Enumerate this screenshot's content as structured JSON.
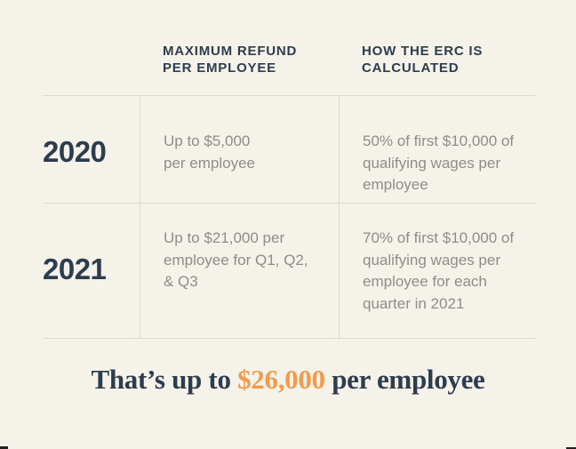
{
  "colors": {
    "background": "#f5f2e9",
    "navy": "#2e3d4e",
    "gray_text": "#8e8d8b",
    "orange_highlight": "#f49a4b",
    "grid_line": "#dcd9d1"
  },
  "chart_data": {
    "type": "table",
    "title": "ERC refund by year",
    "columns": [
      "",
      "MAXIMUM REFUND PER EMPLOYEE",
      "HOW THE ERC IS CALCULATED"
    ],
    "rows": [
      [
        "2020",
        "Up to $5,000 per employee",
        "50% of first $10,000 of qualifying wages per employee"
      ],
      [
        "2021",
        "Up to $21,000 per employee for Q1, Q2, & Q3",
        "70% of first $10,000 of qualifying wages per employee for each quarter in 2021"
      ]
    ],
    "footer": "That’s up to $26,000 per employee",
    "max_refund_values": [
      5000,
      21000,
      26000
    ],
    "percent_of_wages": [
      50,
      70
    ],
    "wage_base": 10000
  },
  "table": {
    "headers": {
      "max_refund": "MAXIMUM REFUND\nPER EMPLOYEE",
      "calculation": "HOW THE ERC IS\nCALCULATED"
    },
    "rows": [
      {
        "year": "2020",
        "max_refund": "Up to $5,000\nper employee",
        "calculation": "50% of first $10,000 of\nqualifying wages per\nemployee"
      },
      {
        "year": "2021",
        "max_refund": "Up to $21,000 per\nemployee for Q1, Q2,\n& Q3",
        "calculation": "70% of first $10,000 of\nqualifying wages per\nemployee for each\nquarter in 2021"
      }
    ]
  },
  "summary": {
    "prefix": "That’s up to ",
    "highlight": "$26,000",
    "suffix": " per employee"
  }
}
